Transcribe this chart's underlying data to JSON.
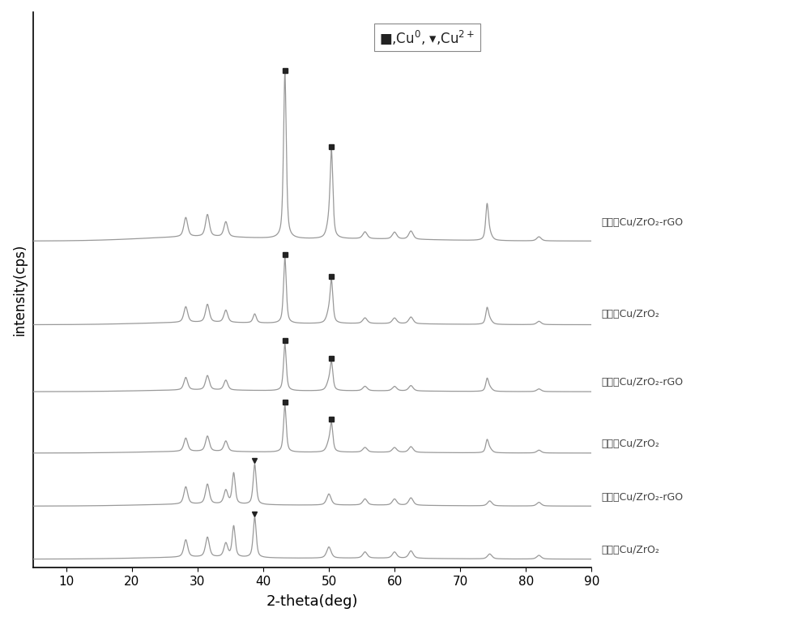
{
  "xlabel": "2-theta(deg)",
  "ylabel": "intensity(cps)",
  "xlim": [
    5,
    90
  ],
  "background_color": "#ffffff",
  "line_color": "#999999",
  "curve_labels": [
    "还原前Cu/ZrO₂",
    "还原前Cu/ZrO₂-rGO",
    "还原后Cu/ZrO₂",
    "还原后Cu/ZrO₂-rGO",
    "反应后Cu/ZrO₂",
    "反应后Cu/ZrO₂-rGO"
  ],
  "offsets": [
    0.0,
    0.095,
    0.19,
    0.3,
    0.42,
    0.57
  ],
  "scale_factors": [
    0.075,
    0.075,
    0.085,
    0.085,
    0.12,
    0.3
  ]
}
